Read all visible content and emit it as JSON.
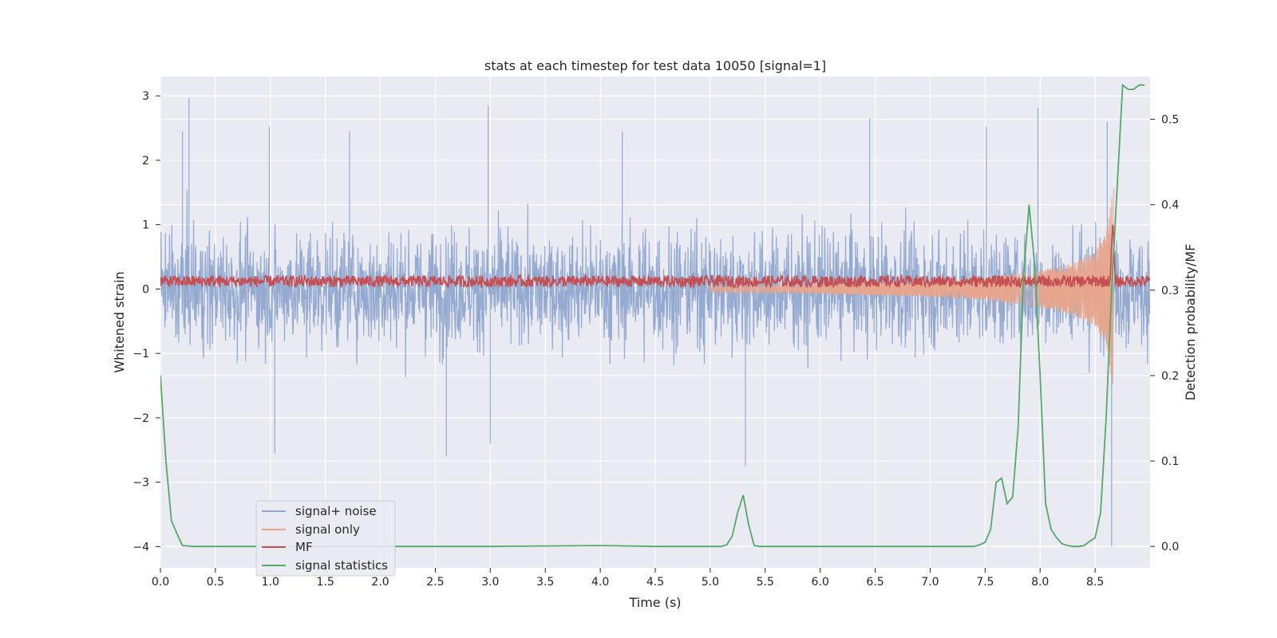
{
  "chart_data": {
    "type": "line",
    "title": "stats at each timestep for test data 10050 [signal=1]",
    "xlabel": "Time (s)",
    "ylabel_left": "Whitened strain",
    "ylabel_right": "Detection probability/MF",
    "xlim": [
      0,
      9.0
    ],
    "ylim_left": [
      -4.33,
      3.3
    ],
    "ylim_right": [
      -0.025,
      0.55
    ],
    "x_ticks": [
      "0.0",
      "0.5",
      "1.0",
      "1.5",
      "2.0",
      "2.5",
      "3.0",
      "3.5",
      "4.0",
      "4.5",
      "5.0",
      "5.5",
      "6.0",
      "6.5",
      "7.0",
      "7.5",
      "8.0",
      "8.5"
    ],
    "y_ticks_left": [
      "3",
      "2",
      "1",
      "0",
      "−1",
      "−2",
      "−3",
      "−4"
    ],
    "y_ticks_right": [
      "0.5",
      "0.4",
      "0.3",
      "0.2",
      "0.1",
      "0.0"
    ],
    "grid": true,
    "legend_position": "lower-left",
    "series": [
      {
        "name": "signal+ noise",
        "axis": "left",
        "color": "#8fa6cd",
        "description_values": "dense noisy strain, band approx -1.4 to 1.3, spikes to ~3.0 and ~-2.75",
        "spikes": [
          [
            0.26,
            2.97
          ],
          [
            0.2,
            2.45
          ],
          [
            0.99,
            2.52
          ],
          [
            1.72,
            2.45
          ],
          [
            2.98,
            2.85
          ],
          [
            4.2,
            2.45
          ],
          [
            6.45,
            2.65
          ],
          [
            7.51,
            2.52
          ],
          [
            7.98,
            2.82
          ],
          [
            8.61,
            2.6
          ],
          [
            1.04,
            -2.55
          ],
          [
            2.6,
            -2.6
          ],
          [
            3.0,
            -2.4
          ],
          [
            5.32,
            -2.75
          ],
          [
            8.65,
            -4.0
          ]
        ]
      },
      {
        "name": "signal only",
        "axis": "left",
        "color": "#e9a48a",
        "envelope": {
          "x": [
            5.0,
            6.0,
            7.0,
            7.5,
            8.0,
            8.3,
            8.5,
            8.6,
            8.65,
            8.67
          ],
          "amp": [
            0.05,
            0.07,
            0.12,
            0.17,
            0.28,
            0.4,
            0.58,
            0.85,
            1.4,
            1.6
          ]
        }
      },
      {
        "name": "MF",
        "axis": "left",
        "color": "#c44e52",
        "baseline": 0.12,
        "peak": [
          8.66,
          1.0
        ]
      },
      {
        "name": "signal statistics",
        "axis": "right",
        "color": "#55a868",
        "x": [
          0.0,
          0.05,
          0.1,
          0.15,
          0.2,
          0.3,
          0.5,
          1.0,
          2.0,
          3.0,
          4.0,
          4.5,
          5.1,
          5.15,
          5.2,
          5.25,
          5.3,
          5.35,
          5.4,
          5.45,
          5.5,
          6.0,
          7.0,
          7.4,
          7.45,
          7.5,
          7.55,
          7.6,
          7.65,
          7.7,
          7.75,
          7.8,
          7.85,
          7.9,
          7.95,
          8.0,
          8.05,
          8.1,
          8.15,
          8.2,
          8.25,
          8.3,
          8.35,
          8.4,
          8.45,
          8.5,
          8.55,
          8.6,
          8.65,
          8.7,
          8.75,
          8.8,
          8.85,
          8.9,
          8.95
        ],
        "y": [
          0.2,
          0.1,
          0.03,
          0.015,
          0.001,
          0.0,
          0.0,
          0.0,
          0.0,
          0.0,
          0.001,
          0.0,
          0.0,
          0.002,
          0.012,
          0.04,
          0.06,
          0.025,
          0.001,
          0.0,
          0.0,
          0.0,
          0.0,
          0.0,
          0.002,
          0.005,
          0.02,
          0.075,
          0.08,
          0.05,
          0.058,
          0.14,
          0.32,
          0.4,
          0.33,
          0.2,
          0.05,
          0.02,
          0.01,
          0.003,
          0.001,
          0.0,
          0.0,
          0.001,
          0.006,
          0.01,
          0.04,
          0.15,
          0.3,
          0.42,
          0.54,
          0.535,
          0.535,
          0.54,
          0.54
        ]
      }
    ]
  }
}
